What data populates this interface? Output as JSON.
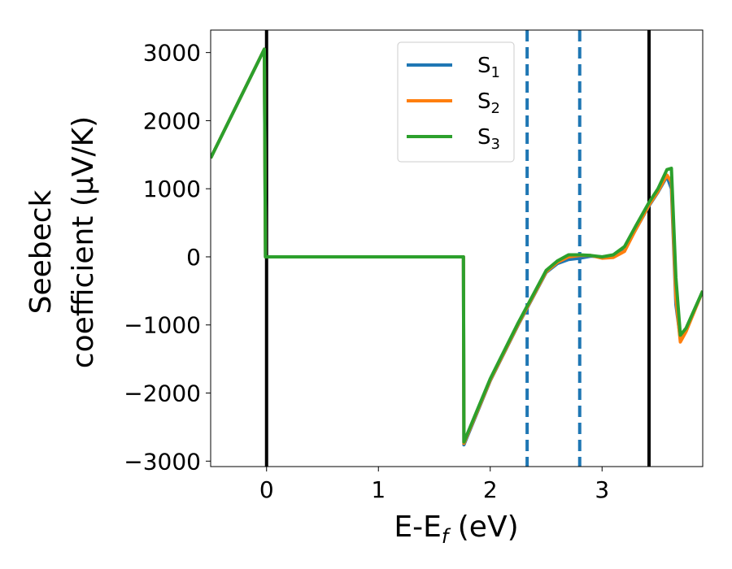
{
  "chart_data": {
    "type": "line",
    "xlabel": "E-E",
    "xlabel_sub": "f",
    "xlabel_unit": " (eV)",
    "ylabel_line1": "Seebeck",
    "ylabel_line2": "coefficient  (μV/K)",
    "xlim": [
      -0.5,
      3.9
    ],
    "ylim": [
      -3080,
      3330
    ],
    "xticks": [
      0,
      1,
      2,
      3
    ],
    "xtick_labels": [
      "0",
      "1",
      "2",
      "3"
    ],
    "yticks": [
      -3000,
      -2000,
      -1000,
      0,
      1000,
      2000,
      3000
    ],
    "ytick_labels": [
      "−3000",
      "−2000",
      "−1000",
      "0",
      "1000",
      "2000",
      "3000"
    ],
    "vlines_solid": [
      0.0,
      3.42
    ],
    "vlines_dashed": [
      2.33,
      2.8
    ],
    "legend_position": "top-center",
    "series": [
      {
        "name": "S",
        "sub": "1",
        "color": "#1f77b4",
        "x": [
          -0.5,
          -0.02,
          -0.01,
          1.76,
          1.765,
          2.0,
          2.25,
          2.5,
          2.6,
          2.7,
          2.8,
          2.9,
          3.0,
          3.1,
          3.2,
          3.3,
          3.42,
          3.5,
          3.58,
          3.62,
          3.66,
          3.7,
          3.75,
          3.9
        ],
        "y": [
          1450,
          3050,
          0,
          0,
          -2760,
          -1820,
          -1000,
          -230,
          -100,
          -40,
          -20,
          10,
          0,
          10,
          100,
          400,
          750,
          950,
          1180,
          1000,
          -700,
          -1200,
          -1080,
          -500
        ]
      },
      {
        "name": "S",
        "sub": "2",
        "color": "#ff7f0e",
        "x": [
          -0.5,
          -0.02,
          -0.01,
          1.76,
          1.765,
          2.0,
          2.25,
          2.5,
          2.6,
          2.7,
          2.8,
          2.9,
          3.0,
          3.1,
          3.2,
          3.3,
          3.42,
          3.5,
          3.58,
          3.62,
          3.66,
          3.7,
          3.75,
          3.9
        ],
        "y": [
          1450,
          3050,
          0,
          0,
          -2740,
          -1810,
          -990,
          -220,
          -80,
          0,
          20,
          20,
          -20,
          -10,
          80,
          400,
          760,
          960,
          1200,
          1100,
          -600,
          -1250,
          -1100,
          -500
        ]
      },
      {
        "name": "S",
        "sub": "3",
        "color": "#2ca02c",
        "x": [
          -0.5,
          -0.02,
          -0.01,
          1.76,
          1.765,
          2.0,
          2.25,
          2.5,
          2.6,
          2.7,
          2.8,
          2.9,
          3.0,
          3.1,
          3.2,
          3.3,
          3.42,
          3.5,
          3.58,
          3.62,
          3.66,
          3.7,
          3.75,
          3.9
        ],
        "y": [
          1450,
          3050,
          0,
          0,
          -2720,
          -1790,
          -970,
          -200,
          -60,
          30,
          30,
          20,
          0,
          30,
          150,
          450,
          800,
          1000,
          1280,
          1300,
          -300,
          -1150,
          -1050,
          -500
        ]
      }
    ]
  }
}
